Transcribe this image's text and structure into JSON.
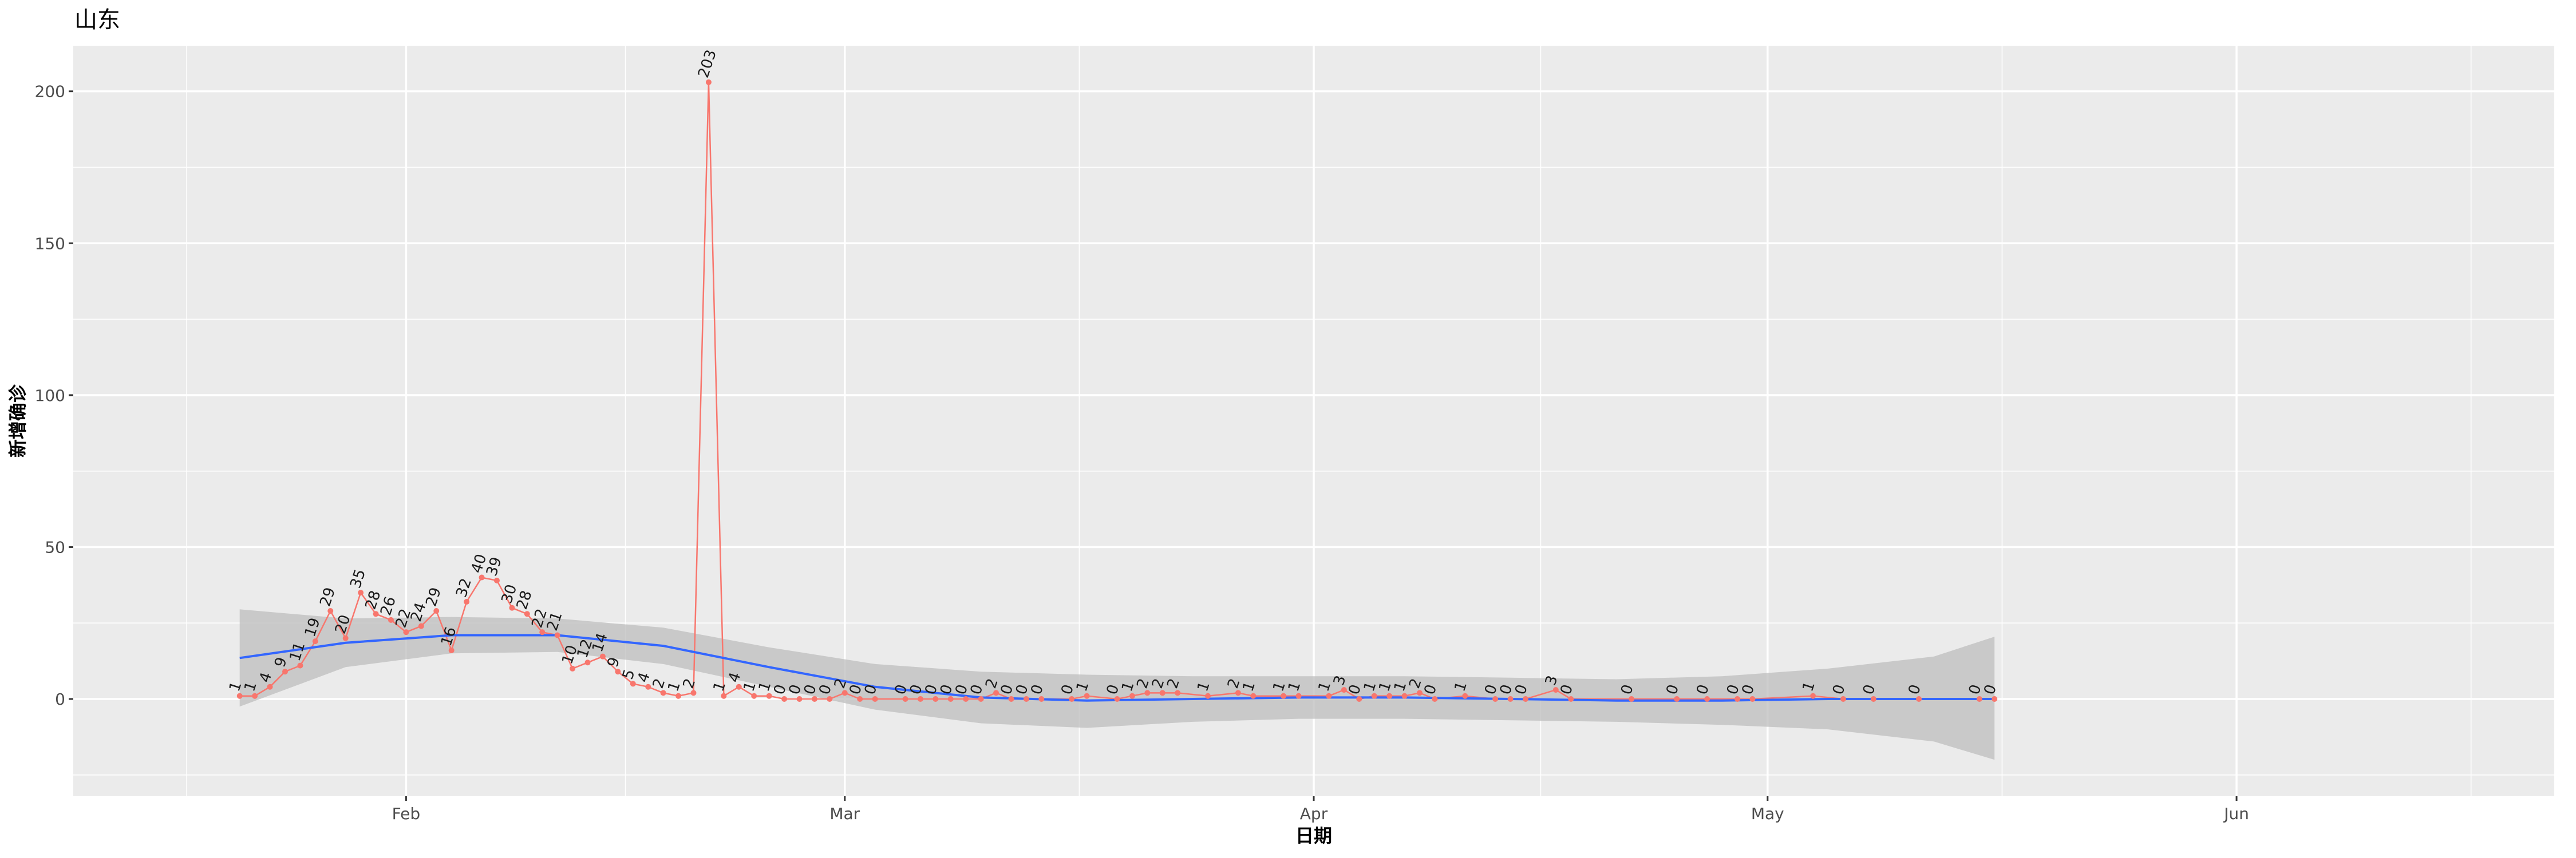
{
  "chart_data": {
    "type": "line",
    "title": "山东",
    "xlabel": "日期",
    "ylabel": "新增确诊",
    "x_ticks": [
      "Feb",
      "Mar",
      "Apr",
      "May",
      "Jun"
    ],
    "y_ticks": [
      "0",
      "50",
      "100",
      "150",
      "200"
    ],
    "ylim": [
      -32,
      215
    ],
    "xlim": [
      "2020-01-10",
      "2020-06-22"
    ],
    "grid": true,
    "legend": "none",
    "colors": {
      "points": "#F8766D",
      "smooth": "#3366FF",
      "band": "#BEBEBE",
      "panel": "#EBEBEB",
      "grid": "#FFFFFF"
    },
    "series": [
      {
        "points": [
          [
            "2020-01-21",
            1
          ],
          [
            "2020-01-22",
            1
          ],
          [
            "2020-01-23",
            4
          ],
          [
            "2020-01-24",
            9
          ],
          [
            "2020-01-25",
            11
          ],
          [
            "2020-01-26",
            19
          ],
          [
            "2020-01-27",
            29
          ],
          [
            "2020-01-28",
            20
          ],
          [
            "2020-01-29",
            35
          ],
          [
            "2020-01-30",
            28
          ],
          [
            "2020-01-31",
            26
          ],
          [
            "2020-02-01",
            22
          ],
          [
            "2020-02-02",
            24
          ],
          [
            "2020-02-03",
            29
          ],
          [
            "2020-02-04",
            16
          ],
          [
            "2020-02-05",
            32
          ],
          [
            "2020-02-06",
            40
          ],
          [
            "2020-02-07",
            39
          ],
          [
            "2020-02-08",
            30
          ],
          [
            "2020-02-09",
            28
          ],
          [
            "2020-02-10",
            22
          ],
          [
            "2020-02-11",
            21
          ],
          [
            "2020-02-12",
            10
          ],
          [
            "2020-02-13",
            12
          ],
          [
            "2020-02-14",
            14
          ],
          [
            "2020-02-15",
            9
          ],
          [
            "2020-02-16",
            5
          ],
          [
            "2020-02-17",
            4
          ],
          [
            "2020-02-18",
            2
          ],
          [
            "2020-02-19",
            1
          ],
          [
            "2020-02-20",
            2
          ],
          [
            "2020-02-21",
            203
          ],
          [
            "2020-02-22",
            1
          ],
          [
            "2020-02-23",
            4
          ],
          [
            "2020-02-24",
            1
          ],
          [
            "2020-02-25",
            1
          ],
          [
            "2020-02-26",
            0
          ],
          [
            "2020-02-27",
            0
          ],
          [
            "2020-02-28",
            0
          ],
          [
            "2020-02-29",
            0
          ],
          [
            "2020-03-01",
            2
          ],
          [
            "2020-03-02",
            0
          ],
          [
            "2020-03-03",
            0
          ],
          [
            "2020-03-05",
            0
          ],
          [
            "2020-03-06",
            0
          ],
          [
            "2020-03-07",
            0
          ],
          [
            "2020-03-08",
            0
          ],
          [
            "2020-03-09",
            0
          ],
          [
            "2020-03-10",
            0
          ],
          [
            "2020-03-11",
            2
          ],
          [
            "2020-03-12",
            0
          ],
          [
            "2020-03-13",
            0
          ],
          [
            "2020-03-14",
            0
          ],
          [
            "2020-03-16",
            0
          ],
          [
            "2020-03-17",
            1
          ],
          [
            "2020-03-19",
            0
          ],
          [
            "2020-03-20",
            1
          ],
          [
            "2020-03-21",
            2
          ],
          [
            "2020-03-22",
            2
          ],
          [
            "2020-03-23",
            2
          ],
          [
            "2020-03-25",
            1
          ],
          [
            "2020-03-27",
            2
          ],
          [
            "2020-03-28",
            1
          ],
          [
            "2020-03-30",
            1
          ],
          [
            "2020-03-31",
            1
          ],
          [
            "2020-04-02",
            1
          ],
          [
            "2020-04-03",
            3
          ],
          [
            "2020-04-04",
            0
          ],
          [
            "2020-04-05",
            1
          ],
          [
            "2020-04-06",
            1
          ],
          [
            "2020-04-07",
            1
          ],
          [
            "2020-04-08",
            2
          ],
          [
            "2020-04-09",
            0
          ],
          [
            "2020-04-11",
            1
          ],
          [
            "2020-04-13",
            0
          ],
          [
            "2020-04-14",
            0
          ],
          [
            "2020-04-15",
            0
          ],
          [
            "2020-04-17",
            3
          ],
          [
            "2020-04-18",
            0
          ],
          [
            "2020-04-22",
            0
          ],
          [
            "2020-04-25",
            0
          ],
          [
            "2020-04-27",
            0
          ],
          [
            "2020-04-29",
            0
          ],
          [
            "2020-04-30",
            0
          ],
          [
            "2020-05-04",
            1
          ],
          [
            "2020-05-06",
            0
          ],
          [
            "2020-05-08",
            0
          ],
          [
            "2020-05-11",
            0
          ],
          [
            "2020-05-15",
            0
          ],
          [
            "2020-05-16",
            0
          ]
        ]
      }
    ],
    "smooth": [
      [
        0,
        13.5,
        -2.5,
        29.5
      ],
      [
        7,
        18.5,
        10.5,
        26.5
      ],
      [
        14,
        21,
        15,
        27
      ],
      [
        21,
        21,
        15.5,
        26.5
      ],
      [
        28,
        17.5,
        11.5,
        23.5
      ],
      [
        35,
        10.5,
        4,
        17
      ],
      [
        42,
        4,
        -3.5,
        11.5
      ],
      [
        49,
        0.5,
        -8,
        9
      ],
      [
        56,
        -0.5,
        -9.5,
        8
      ],
      [
        63,
        0,
        -7.5,
        7.5
      ],
      [
        70,
        0.5,
        -6.5,
        7.5
      ],
      [
        77,
        0.5,
        -6.5,
        7.5
      ],
      [
        84,
        0,
        -7,
        7
      ],
      [
        91,
        -0.5,
        -7.5,
        6.5
      ],
      [
        98,
        -0.5,
        -8.5,
        7.5
      ],
      [
        105,
        0,
        -10,
        10
      ],
      [
        112,
        0,
        -14,
        14
      ],
      [
        116,
        0,
        -20,
        20.5
      ]
    ]
  }
}
